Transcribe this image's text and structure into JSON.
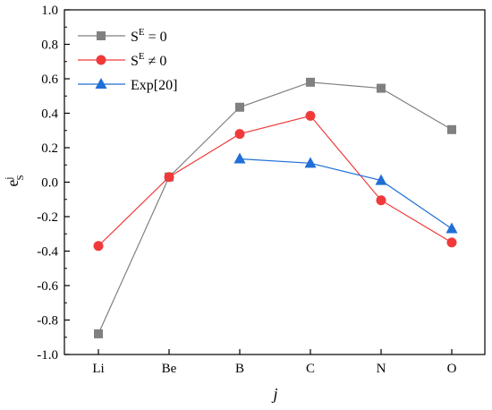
{
  "chart_data": {
    "type": "line",
    "categories": [
      "Li",
      "Be",
      "B",
      "C",
      "N",
      "O"
    ],
    "xlabel": "j",
    "ylabel": {
      "base": "e",
      "sup": "j",
      "sub": "S"
    },
    "ylim": [
      -1.0,
      1.0
    ],
    "yticks": [
      "-1.0",
      "-0.8",
      "-0.6",
      "-0.4",
      "-0.2",
      "0.0",
      "0.2",
      "0.4",
      "0.6",
      "0.8",
      "1.0"
    ],
    "grid": false,
    "legend_position": "top-left",
    "series": [
      {
        "key": "se0",
        "legend": {
          "pre": "S",
          "sup": "E",
          "post": " = 0"
        },
        "color": "#808080",
        "marker": "square",
        "x": [
          "Li",
          "Be",
          "B",
          "C",
          "N",
          "O"
        ],
        "values": [
          -0.88,
          0.03,
          0.435,
          0.58,
          0.545,
          0.305
        ]
      },
      {
        "key": "sene0",
        "legend": {
          "pre": "S",
          "sup": "E",
          "post": " ≠ 0"
        },
        "color": "#f03a3a",
        "marker": "circle",
        "x": [
          "Li",
          "Be",
          "B",
          "C",
          "N",
          "O"
        ],
        "values": [
          -0.37,
          0.03,
          0.28,
          0.385,
          -0.105,
          -0.35
        ]
      },
      {
        "key": "exp",
        "legend": {
          "pre": "Exp[20]",
          "sup": "",
          "post": ""
        },
        "color": "#1f6fd6",
        "marker": "triangle",
        "x": [
          "B",
          "C",
          "N",
          "O"
        ],
        "values": [
          0.135,
          0.11,
          0.01,
          -0.27
        ]
      }
    ]
  }
}
